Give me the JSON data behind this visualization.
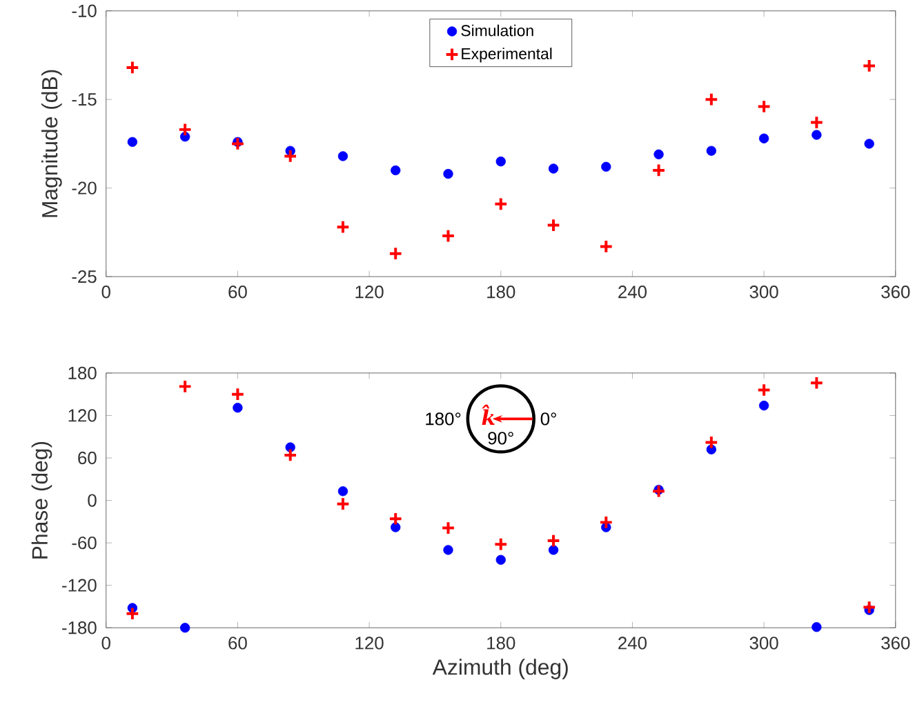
{
  "chart_data": [
    {
      "type": "scatter",
      "ylabel": "Magnitude (dB)",
      "x": [
        12,
        36,
        60,
        84,
        108,
        132,
        156,
        180,
        204,
        228,
        252,
        276,
        300,
        324,
        348
      ],
      "series": [
        {
          "name": "Simulation",
          "color": "#0000ff",
          "marker": "circle",
          "values": [
            -17.4,
            -17.1,
            -17.4,
            -17.9,
            -18.2,
            -19.0,
            -19.2,
            -18.5,
            -18.9,
            -18.8,
            -18.1,
            -17.9,
            -17.2,
            -17.0,
            -17.5
          ]
        },
        {
          "name": "Experimental",
          "color": "#ff0000",
          "marker": "cross",
          "values": [
            -13.2,
            -16.7,
            -17.5,
            -18.2,
            -22.2,
            -23.7,
            -22.7,
            -20.9,
            -22.1,
            -23.3,
            -19.0,
            -15.0,
            -15.4,
            -16.3,
            -13.1
          ]
        }
      ],
      "xlim": [
        0,
        360
      ],
      "xticks": [
        0,
        60,
        120,
        180,
        240,
        300,
        360
      ],
      "ylim": [
        -25,
        -10
      ],
      "yticks": [
        -25,
        -20,
        -15,
        -10
      ],
      "legend": "top"
    },
    {
      "type": "scatter",
      "xlabel": "Azimuth (deg)",
      "ylabel": "Phase (deg)",
      "x": [
        12,
        36,
        60,
        84,
        108,
        132,
        156,
        180,
        204,
        228,
        252,
        276,
        300,
        324,
        348
      ],
      "series": [
        {
          "color": "#0000ff",
          "marker": "circle",
          "values": [
            -152,
            -180,
            131,
            75,
            13,
            -38,
            -70,
            -84,
            -70,
            -38,
            15,
            72,
            134,
            -179,
            -155
          ]
        },
        {
          "color": "#ff0000",
          "marker": "cross",
          "values": [
            -160,
            161,
            150,
            64,
            -5,
            -26,
            -39,
            -62,
            -57,
            -31,
            13,
            82,
            156,
            166,
            -151
          ]
        }
      ],
      "xlim": [
        0,
        360
      ],
      "xticks": [
        0,
        60,
        120,
        180,
        240,
        300,
        360
      ],
      "ylim": [
        -180,
        180
      ],
      "yticks": [
        -180,
        -120,
        -60,
        0,
        60,
        120,
        180
      ],
      "legend": false,
      "annotations": [
        "180°",
        "0°",
        "90°",
        "k̂"
      ]
    }
  ]
}
